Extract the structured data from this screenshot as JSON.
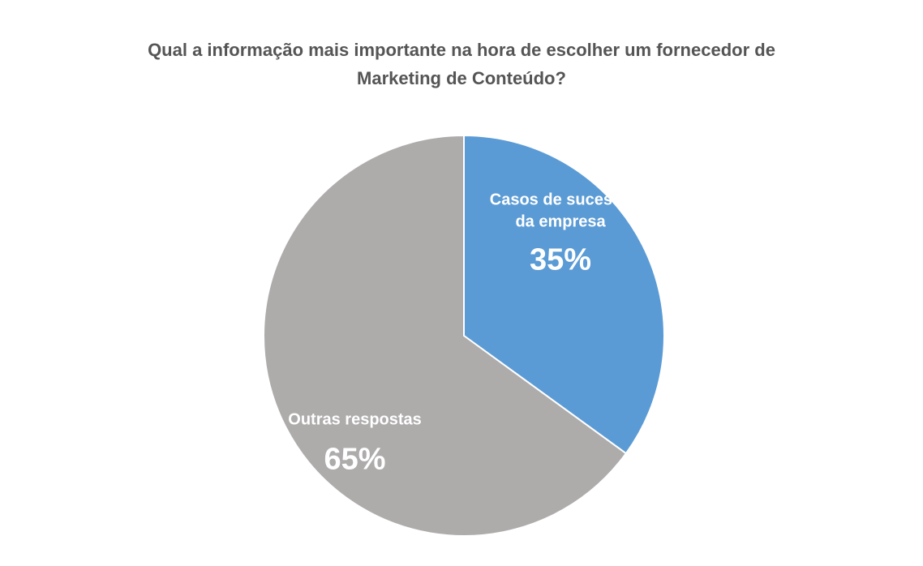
{
  "chart_data": {
    "type": "pie",
    "title_lines": [
      "Qual a informação mais importante na hora de escolher um fornecedor de",
      "Marketing de Conteúdo?"
    ],
    "slices": [
      {
        "label_lines": [
          "Casos de sucesso",
          "da empresa"
        ],
        "value": 35,
        "value_label": "35%",
        "color": "#5b9bd5"
      },
      {
        "label_lines": [
          "Outras respostas"
        ],
        "value": 65,
        "value_label": "65%",
        "color": "#aeabab"
      }
    ]
  }
}
